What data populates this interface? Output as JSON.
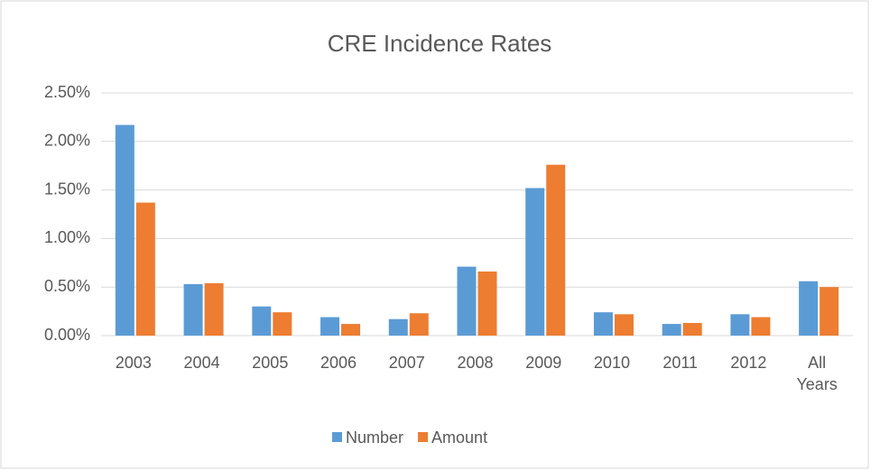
{
  "chart_data": {
    "type": "bar",
    "title": "CRE Incidence Rates",
    "categories": [
      "2003",
      "2004",
      "2005",
      "2006",
      "2007",
      "2008",
      "2009",
      "2010",
      "2011",
      "2012",
      "All Years"
    ],
    "series": [
      {
        "name": "Number",
        "color": "#5b9bd5",
        "values": [
          2.17,
          0.53,
          0.3,
          0.19,
          0.17,
          0.71,
          1.52,
          0.24,
          0.12,
          0.22,
          0.56
        ]
      },
      {
        "name": "Amount",
        "color": "#ed7d31",
        "values": [
          1.37,
          0.54,
          0.24,
          0.12,
          0.23,
          0.66,
          1.76,
          0.22,
          0.13,
          0.19,
          0.5
        ]
      }
    ],
    "ylim": [
      0,
      2.5
    ],
    "yticks": [
      {
        "value": 0,
        "label": "0.00%"
      },
      {
        "value": 0.5,
        "label": "0.50%"
      },
      {
        "value": 1,
        "label": "1.00%"
      },
      {
        "value": 1.5,
        "label": "1.50%"
      },
      {
        "value": 2,
        "label": "2.00%"
      },
      {
        "value": 2.5,
        "label": "2.50%"
      }
    ],
    "grid": true,
    "legend": "bottom"
  }
}
